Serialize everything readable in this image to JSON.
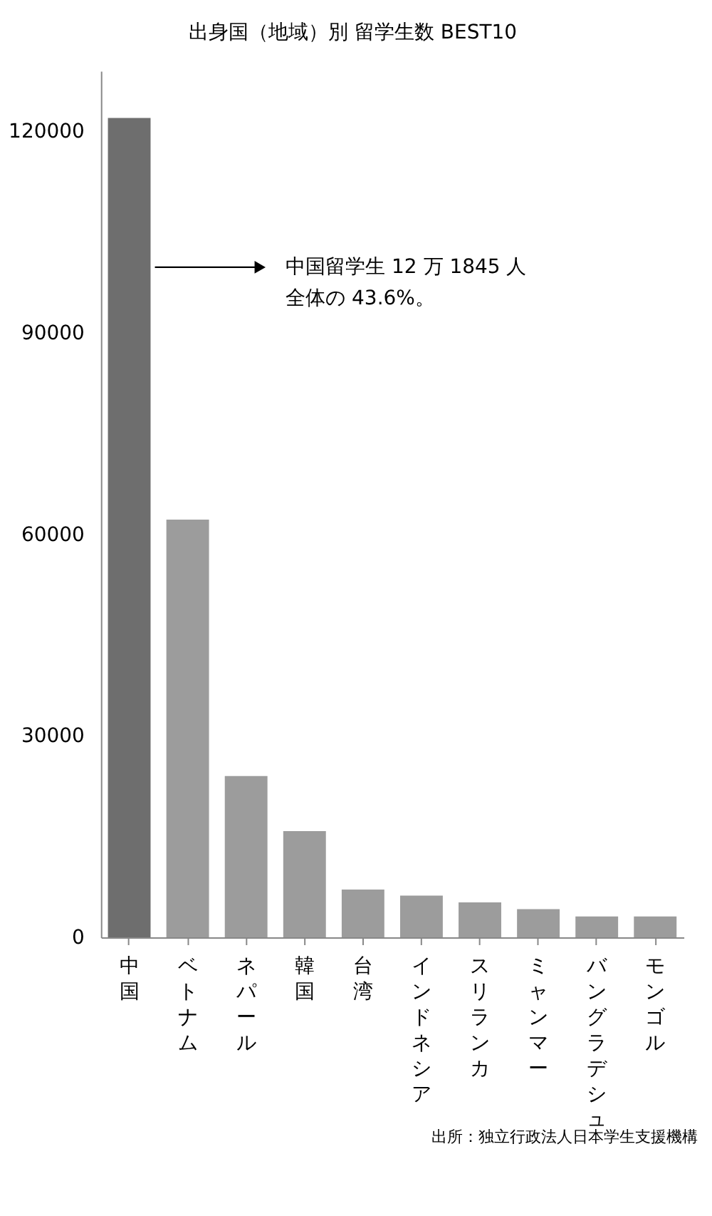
{
  "chart_data": {
    "type": "bar",
    "title": "出身国（地域）別 留学生数 BEST10",
    "categories": [
      "中国",
      "ベトナム",
      "ネパール",
      "韓国",
      "台湾",
      "インドネシア",
      "スリランカ",
      "ミャンマー",
      "バングラデシュ",
      "モンゴル"
    ],
    "values": [
      122000,
      62200,
      24000,
      15800,
      7100,
      6200,
      5200,
      4200,
      3100,
      3100
    ],
    "colors": [
      "#6e6e6e",
      "#9c9c9c",
      "#9c9c9c",
      "#9c9c9c",
      "#9c9c9c",
      "#9c9c9c",
      "#9c9c9c",
      "#9c9c9c",
      "#9c9c9c",
      "#9c9c9c"
    ],
    "ylim": [
      0,
      129000
    ],
    "yticks": [
      0,
      30000,
      60000,
      90000,
      120000
    ],
    "grid": false,
    "annotations": [
      "中国留学生 12 万 1845 人",
      "全体の 43.6%。",
      "出所：独立行政法人日本学生支援機構"
    ]
  }
}
